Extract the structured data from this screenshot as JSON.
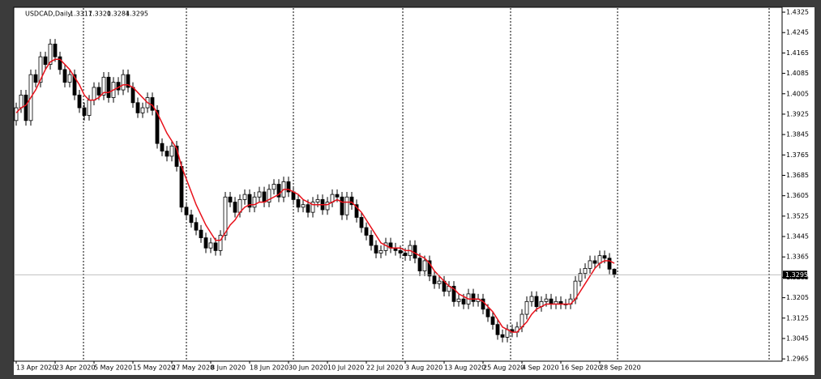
{
  "chart_data": {
    "type": "candlestick",
    "title": "USDCAD,Daily",
    "categories": [
      "13 Apr 2020",
      null,
      null,
      null,
      null,
      null,
      null,
      null,
      "23 Apr 2020",
      null,
      null,
      null,
      null,
      null,
      null,
      null,
      "5 May 2020",
      null,
      null,
      null,
      null,
      null,
      null,
      null,
      "15 May 2020",
      null,
      null,
      null,
      null,
      null,
      null,
      null,
      "27 May 2020",
      null,
      null,
      null,
      null,
      null,
      null,
      null,
      "8 Jun 2020",
      null,
      null,
      null,
      null,
      null,
      null,
      null,
      "18 Jun 2020",
      null,
      null,
      null,
      null,
      null,
      null,
      null,
      "30 Jun 2020",
      null,
      null,
      null,
      null,
      null,
      null,
      null,
      "10 Jul 2020",
      null,
      null,
      null,
      null,
      null,
      null,
      null,
      "22 Jul 2020",
      null,
      null,
      null,
      null,
      null,
      null,
      null,
      "3 Aug 2020",
      null,
      null,
      null,
      null,
      null,
      null,
      null,
      "13 Aug 2020",
      null,
      null,
      null,
      null,
      null,
      null,
      null,
      "25 Aug 2020",
      null,
      null,
      null,
      null,
      null,
      null,
      null,
      "4 Sep 2020",
      null,
      null,
      null,
      null,
      null,
      null,
      null,
      "16 Sep 2020",
      null,
      null,
      null,
      null,
      null,
      null,
      null,
      "28 Sep 2020",
      null,
      null,
      null
    ],
    "open": [
      1.39,
      1.395,
      1.4,
      1.39,
      1.408,
      1.405,
      1.415,
      1.412,
      1.42,
      1.415,
      1.41,
      1.405,
      1.408,
      1.4,
      1.395,
      1.392,
      1.398,
      1.403,
      1.4,
      1.407,
      1.399,
      1.405,
      1.402,
      1.408,
      1.403,
      1.397,
      1.393,
      1.395,
      1.399,
      1.394,
      1.381,
      1.378,
      1.376,
      1.38,
      1.372,
      1.356,
      1.353,
      1.35,
      1.347,
      1.344,
      1.34,
      1.342,
      1.339,
      1.345,
      1.36,
      1.358,
      1.354,
      1.359,
      1.361,
      1.356,
      1.36,
      1.362,
      1.358,
      1.363,
      1.365,
      1.36,
      1.366,
      1.362,
      1.359,
      1.356,
      1.357,
      1.354,
      1.358,
      1.359,
      1.355,
      1.358,
      1.361,
      1.36,
      1.353,
      1.36,
      1.357,
      1.352,
      1.348,
      1.345,
      1.341,
      1.338,
      1.339,
      1.342,
      1.34,
      1.339,
      1.338,
      1.337,
      1.341,
      1.336,
      1.331,
      1.335,
      1.329,
      1.326,
      1.327,
      1.323,
      1.325,
      1.319,
      1.32,
      1.318,
      1.322,
      1.319,
      1.32,
      1.316,
      1.313,
      1.31,
      1.306,
      1.305,
      1.308,
      1.307,
      1.309,
      1.314,
      1.319,
      1.321,
      1.317,
      1.319,
      1.32,
      1.318,
      1.319,
      1.318,
      1.318,
      1.32,
      1.327,
      1.33,
      1.332,
      1.335,
      1.334,
      1.337,
      1.336,
      1.3317
    ],
    "high": [
      1.397,
      1.402,
      1.402,
      1.41,
      1.41,
      1.417,
      1.417,
      1.422,
      1.422,
      1.417,
      1.412,
      1.41,
      1.41,
      1.402,
      1.397,
      1.4,
      1.405,
      1.405,
      1.409,
      1.409,
      1.407,
      1.407,
      1.41,
      1.41,
      1.405,
      1.399,
      1.397,
      1.401,
      1.401,
      1.396,
      1.383,
      1.38,
      1.382,
      1.382,
      1.374,
      1.358,
      1.355,
      1.352,
      1.349,
      1.346,
      1.344,
      1.344,
      1.347,
      1.362,
      1.362,
      1.36,
      1.361,
      1.363,
      1.363,
      1.362,
      1.364,
      1.364,
      1.365,
      1.367,
      1.367,
      1.368,
      1.368,
      1.364,
      1.361,
      1.359,
      1.359,
      1.36,
      1.361,
      1.361,
      1.36,
      1.363,
      1.363,
      1.362,
      1.362,
      1.362,
      1.359,
      1.354,
      1.35,
      1.347,
      1.343,
      1.341,
      1.344,
      1.344,
      1.342,
      1.341,
      1.34,
      1.343,
      1.343,
      1.338,
      1.337,
      1.337,
      1.331,
      1.329,
      1.329,
      1.327,
      1.327,
      1.322,
      1.322,
      1.324,
      1.324,
      1.322,
      1.322,
      1.318,
      1.315,
      1.312,
      1.308,
      1.31,
      1.31,
      1.311,
      1.316,
      1.321,
      1.323,
      1.323,
      1.321,
      1.322,
      1.322,
      1.321,
      1.321,
      1.32,
      1.322,
      1.329,
      1.332,
      1.334,
      1.337,
      1.337,
      1.339,
      1.339,
      1.338,
      1.332
    ],
    "low": [
      1.388,
      1.393,
      1.388,
      1.388,
      1.403,
      1.403,
      1.41,
      1.41,
      1.413,
      1.408,
      1.403,
      1.403,
      1.398,
      1.393,
      1.39,
      1.39,
      1.396,
      1.398,
      1.398,
      1.397,
      1.397,
      1.4,
      1.4,
      1.401,
      1.395,
      1.391,
      1.391,
      1.393,
      1.392,
      1.379,
      1.376,
      1.374,
      1.374,
      1.37,
      1.354,
      1.351,
      1.348,
      1.345,
      1.342,
      1.338,
      1.338,
      1.337,
      1.337,
      1.343,
      1.356,
      1.352,
      1.352,
      1.357,
      1.354,
      1.354,
      1.358,
      1.356,
      1.356,
      1.361,
      1.358,
      1.358,
      1.36,
      1.357,
      1.354,
      1.354,
      1.352,
      1.352,
      1.356,
      1.353,
      1.353,
      1.356,
      1.358,
      1.351,
      1.351,
      1.355,
      1.35,
      1.346,
      1.343,
      1.339,
      1.336,
      1.336,
      1.337,
      1.338,
      1.337,
      1.336,
      1.335,
      1.335,
      1.334,
      1.329,
      1.329,
      1.327,
      1.324,
      1.324,
      1.321,
      1.321,
      1.317,
      1.317,
      1.316,
      1.316,
      1.317,
      1.317,
      1.314,
      1.311,
      1.308,
      1.304,
      1.303,
      1.303,
      1.305,
      1.305,
      1.307,
      1.312,
      1.317,
      1.315,
      1.315,
      1.317,
      1.316,
      1.316,
      1.316,
      1.316,
      1.316,
      1.318,
      1.325,
      1.328,
      1.33,
      1.332,
      1.332,
      1.334,
      1.3297,
      1.3284
    ],
    "close": [
      1.395,
      1.4,
      1.39,
      1.408,
      1.405,
      1.415,
      1.412,
      1.42,
      1.415,
      1.41,
      1.405,
      1.408,
      1.4,
      1.395,
      1.392,
      1.398,
      1.403,
      1.4,
      1.407,
      1.399,
      1.405,
      1.402,
      1.408,
      1.403,
      1.397,
      1.393,
      1.395,
      1.399,
      1.394,
      1.381,
      1.378,
      1.376,
      1.38,
      1.372,
      1.356,
      1.353,
      1.35,
      1.347,
      1.344,
      1.34,
      1.342,
      1.339,
      1.345,
      1.36,
      1.358,
      1.354,
      1.359,
      1.361,
      1.356,
      1.36,
      1.362,
      1.358,
      1.363,
      1.365,
      1.36,
      1.366,
      1.362,
      1.359,
      1.356,
      1.357,
      1.354,
      1.358,
      1.359,
      1.355,
      1.358,
      1.361,
      1.36,
      1.353,
      1.36,
      1.357,
      1.352,
      1.348,
      1.345,
      1.341,
      1.338,
      1.339,
      1.342,
      1.34,
      1.339,
      1.338,
      1.337,
      1.341,
      1.336,
      1.331,
      1.335,
      1.329,
      1.326,
      1.327,
      1.323,
      1.325,
      1.319,
      1.32,
      1.318,
      1.322,
      1.319,
      1.32,
      1.316,
      1.313,
      1.31,
      1.306,
      1.305,
      1.308,
      1.307,
      1.309,
      1.314,
      1.319,
      1.321,
      1.317,
      1.319,
      1.32,
      1.318,
      1.319,
      1.318,
      1.318,
      1.32,
      1.327,
      1.33,
      1.332,
      1.335,
      1.334,
      1.337,
      1.336,
      1.3317,
      1.3295
    ],
    "ohlc_labels": [
      "1.3317",
      "1.3320",
      "1.3284",
      "1.3295"
    ],
    "moving_average": {
      "color": "#e8101a",
      "values": [
        1.393,
        1.395,
        1.396,
        1.399,
        1.402,
        1.406,
        1.41,
        1.413,
        1.414,
        1.414,
        1.412,
        1.41,
        1.407,
        1.404,
        1.4,
        1.398,
        1.398,
        1.399,
        1.401,
        1.401,
        1.402,
        1.403,
        1.404,
        1.404,
        1.403,
        1.401,
        1.399,
        1.397,
        1.396,
        1.393,
        1.389,
        1.385,
        1.382,
        1.379,
        1.372,
        1.367,
        1.362,
        1.357,
        1.353,
        1.349,
        1.346,
        1.343,
        1.343,
        1.346,
        1.349,
        1.351,
        1.354,
        1.356,
        1.357,
        1.357,
        1.358,
        1.358,
        1.359,
        1.36,
        1.361,
        1.363,
        1.363,
        1.362,
        1.361,
        1.359,
        1.358,
        1.357,
        1.357,
        1.357,
        1.357,
        1.358,
        1.359,
        1.358,
        1.358,
        1.358,
        1.356,
        1.354,
        1.351,
        1.348,
        1.345,
        1.342,
        1.341,
        1.34,
        1.34,
        1.34,
        1.339,
        1.339,
        1.338,
        1.337,
        1.336,
        1.334,
        1.331,
        1.329,
        1.327,
        1.325,
        1.324,
        1.322,
        1.321,
        1.32,
        1.32,
        1.32,
        1.319,
        1.317,
        1.315,
        1.312,
        1.309,
        1.308,
        1.307,
        1.307,
        1.309,
        1.311,
        1.314,
        1.316,
        1.317,
        1.318,
        1.318,
        1.318,
        1.318,
        1.318,
        1.318,
        1.32,
        1.323,
        1.326,
        1.329,
        1.332,
        1.334,
        1.335,
        1.335,
        1.334
      ]
    },
    "up_color": "#ffffff",
    "down_color": "#000000",
    "ylim": [
      1.2956,
      1.4341
    ],
    "yticks": [
      1.4325,
      1.4245,
      1.4165,
      1.4085,
      1.4005,
      1.3925,
      1.3845,
      1.3765,
      1.3685,
      1.3605,
      1.3525,
      1.3445,
      1.3365,
      1.3285,
      1.3205,
      1.3125,
      1.3045,
      1.2965
    ]
  }
}
